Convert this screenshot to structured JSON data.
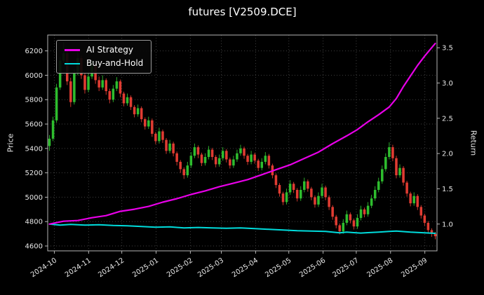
{
  "chart_data": {
    "type": "candlestick",
    "title": "futures [V2509.DCE]",
    "ylabel_left": "Price",
    "ylabel_right": "Return",
    "grid": "dotted",
    "legend_position": "upper-left",
    "x_start": "2024-09-25",
    "x_end": "2025-09-12",
    "x_ticks": [
      {
        "label": "2024-10",
        "date": "2024-10-01"
      },
      {
        "label": "2024-11",
        "date": "2024-11-01"
      },
      {
        "label": "2024-12",
        "date": "2024-12-01"
      },
      {
        "label": "2025-01",
        "date": "2025-01-01"
      },
      {
        "label": "2025-02",
        "date": "2025-02-01"
      },
      {
        "label": "2025-03",
        "date": "2025-03-01"
      },
      {
        "label": "2025-04",
        "date": "2025-04-01"
      },
      {
        "label": "2025-05",
        "date": "2025-05-01"
      },
      {
        "label": "2025-06",
        "date": "2025-06-01"
      },
      {
        "label": "2025-07",
        "date": "2025-07-01"
      },
      {
        "label": "2025-08",
        "date": "2025-08-01"
      },
      {
        "label": "2025-09",
        "date": "2025-09-01"
      }
    ],
    "price_ticks": [
      4600,
      4800,
      5000,
      5200,
      5400,
      5600,
      5800,
      6000,
      6200
    ],
    "return_ticks": [
      1.0,
      1.5,
      2.0,
      2.5,
      3.0,
      3.5
    ],
    "ylim_price": [
      4560,
      6330
    ],
    "ylim_return": [
      0.62,
      3.68
    ],
    "colors": {
      "bg": "#000000",
      "text": "#e8e8e8",
      "grid": "#3f3f3f",
      "spine": "#b5b5b5",
      "up": "#2ebd2e",
      "down": "#e03c32",
      "strategy": "#e800e8",
      "buyhold": "#00dcdc"
    },
    "candles": [
      [
        5420,
        5510,
        5380,
        5480
      ],
      [
        5480,
        5660,
        5460,
        5630
      ],
      [
        5630,
        5930,
        5610,
        5900
      ],
      [
        5900,
        6150,
        5880,
        6120
      ],
      [
        6120,
        6270,
        6100,
        6180
      ],
      [
        6180,
        6210,
        5920,
        5950
      ],
      [
        5950,
        5980,
        5740,
        5780
      ],
      [
        5780,
        6050,
        5760,
        6020
      ],
      [
        6020,
        6190,
        6000,
        6140
      ],
      [
        6140,
        6160,
        5970,
        6000
      ],
      [
        6000,
        6020,
        5850,
        5880
      ],
      [
        5880,
        6030,
        5860,
        5990
      ],
      [
        5990,
        6120,
        5970,
        6080
      ],
      [
        6080,
        6100,
        5930,
        5960
      ],
      [
        5960,
        5990,
        5870,
        5900
      ],
      [
        5900,
        6000,
        5880,
        5960
      ],
      [
        5960,
        5975,
        5840,
        5870
      ],
      [
        5870,
        5890,
        5770,
        5800
      ],
      [
        5800,
        5920,
        5780,
        5890
      ],
      [
        5890,
        5985,
        5870,
        5950
      ],
      [
        5950,
        5965,
        5820,
        5850
      ],
      [
        5850,
        5865,
        5745,
        5770
      ],
      [
        5770,
        5850,
        5750,
        5820
      ],
      [
        5820,
        5835,
        5715,
        5740
      ],
      [
        5740,
        5755,
        5655,
        5680
      ],
      [
        5680,
        5760,
        5660,
        5730
      ],
      [
        5730,
        5745,
        5615,
        5640
      ],
      [
        5640,
        5655,
        5555,
        5580
      ],
      [
        5580,
        5660,
        5560,
        5630
      ],
      [
        5630,
        5645,
        5495,
        5520
      ],
      [
        5520,
        5535,
        5435,
        5460
      ],
      [
        5460,
        5570,
        5440,
        5540
      ],
      [
        5540,
        5555,
        5445,
        5470
      ],
      [
        5470,
        5485,
        5355,
        5380
      ],
      [
        5380,
        5470,
        5360,
        5440
      ],
      [
        5440,
        5455,
        5335,
        5360
      ],
      [
        5360,
        5375,
        5260,
        5290
      ],
      [
        5290,
        5305,
        5200,
        5230
      ],
      [
        5230,
        5245,
        5150,
        5180
      ],
      [
        5180,
        5290,
        5160,
        5260
      ],
      [
        5260,
        5370,
        5240,
        5340
      ],
      [
        5340,
        5440,
        5320,
        5410
      ],
      [
        5410,
        5425,
        5320,
        5350
      ],
      [
        5350,
        5365,
        5255,
        5280
      ],
      [
        5280,
        5360,
        5260,
        5330
      ],
      [
        5330,
        5420,
        5310,
        5390
      ],
      [
        5390,
        5405,
        5305,
        5330
      ],
      [
        5330,
        5345,
        5245,
        5270
      ],
      [
        5270,
        5350,
        5250,
        5320
      ],
      [
        5320,
        5410,
        5300,
        5380
      ],
      [
        5380,
        5395,
        5285,
        5310
      ],
      [
        5310,
        5325,
        5235,
        5260
      ],
      [
        5260,
        5340,
        5240,
        5310
      ],
      [
        5310,
        5390,
        5290,
        5360
      ],
      [
        5360,
        5430,
        5340,
        5400
      ],
      [
        5400,
        5415,
        5315,
        5340
      ],
      [
        5340,
        5355,
        5265,
        5290
      ],
      [
        5290,
        5380,
        5270,
        5350
      ],
      [
        5350,
        5365,
        5275,
        5300
      ],
      [
        5300,
        5315,
        5215,
        5240
      ],
      [
        5240,
        5320,
        5220,
        5290
      ],
      [
        5290,
        5370,
        5270,
        5340
      ],
      [
        5340,
        5355,
        5235,
        5260
      ],
      [
        5260,
        5275,
        5155,
        5180
      ],
      [
        5180,
        5195,
        5075,
        5100
      ],
      [
        5100,
        5115,
        5005,
        5030
      ],
      [
        5030,
        5045,
        4935,
        4960
      ],
      [
        4960,
        5070,
        4940,
        5040
      ],
      [
        5040,
        5140,
        5020,
        5110
      ],
      [
        5110,
        5125,
        5035,
        5060
      ],
      [
        5060,
        5075,
        4965,
        4990
      ],
      [
        4990,
        5090,
        4970,
        5060
      ],
      [
        5060,
        5160,
        5040,
        5130
      ],
      [
        5130,
        5145,
        5045,
        5070
      ],
      [
        5070,
        5085,
        4975,
        5000
      ],
      [
        5000,
        5015,
        4915,
        4940
      ],
      [
        4940,
        5040,
        4920,
        5010
      ],
      [
        5010,
        5110,
        4990,
        5080
      ],
      [
        5080,
        5095,
        4975,
        5000
      ],
      [
        5000,
        5015,
        4895,
        4920
      ],
      [
        4920,
        4935,
        4815,
        4840
      ],
      [
        4840,
        4855,
        4745,
        4770
      ],
      [
        4770,
        4785,
        4695,
        4720
      ],
      [
        4720,
        4820,
        4700,
        4790
      ],
      [
        4790,
        4890,
        4770,
        4860
      ],
      [
        4860,
        4875,
        4785,
        4810
      ],
      [
        4810,
        4825,
        4735,
        4760
      ],
      [
        4760,
        4860,
        4740,
        4830
      ],
      [
        4830,
        4930,
        4810,
        4900
      ],
      [
        4900,
        4915,
        4835,
        4860
      ],
      [
        4860,
        4960,
        4840,
        4930
      ],
      [
        4930,
        5020,
        4910,
        4990
      ],
      [
        4990,
        5090,
        4970,
        5060
      ],
      [
        5060,
        5160,
        5040,
        5130
      ],
      [
        5130,
        5260,
        5110,
        5230
      ],
      [
        5230,
        5360,
        5210,
        5330
      ],
      [
        5330,
        5450,
        5310,
        5410
      ],
      [
        5410,
        5430,
        5295,
        5320
      ],
      [
        5320,
        5340,
        5155,
        5180
      ],
      [
        5180,
        5270,
        5160,
        5240
      ],
      [
        5240,
        5255,
        5095,
        5120
      ],
      [
        5120,
        5135,
        5005,
        5030
      ],
      [
        5030,
        5045,
        4925,
        4950
      ],
      [
        4950,
        5040,
        4930,
        5010
      ],
      [
        5010,
        5025,
        4895,
        4920
      ],
      [
        4920,
        4935,
        4825,
        4850
      ],
      [
        4850,
        4865,
        4765,
        4790
      ],
      [
        4790,
        4805,
        4705,
        4730
      ],
      [
        4730,
        4745,
        4675,
        4700
      ],
      [
        4700,
        4715,
        4655,
        4680
      ]
    ],
    "series": [
      {
        "name": "AI Strategy",
        "axis": "return",
        "color_key": "strategy",
        "width": 2.2,
        "points": [
          [
            0,
            1.0
          ],
          [
            2,
            1.02
          ],
          [
            4,
            1.04
          ],
          [
            8,
            1.05
          ],
          [
            12,
            1.09
          ],
          [
            16,
            1.12
          ],
          [
            20,
            1.18
          ],
          [
            24,
            1.21
          ],
          [
            28,
            1.25
          ],
          [
            32,
            1.31
          ],
          [
            36,
            1.36
          ],
          [
            40,
            1.42
          ],
          [
            44,
            1.47
          ],
          [
            48,
            1.53
          ],
          [
            52,
            1.58
          ],
          [
            56,
            1.63
          ],
          [
            60,
            1.7
          ],
          [
            64,
            1.77
          ],
          [
            68,
            1.84
          ],
          [
            72,
            1.93
          ],
          [
            76,
            2.02
          ],
          [
            80,
            2.14
          ],
          [
            84,
            2.25
          ],
          [
            87,
            2.34
          ],
          [
            90,
            2.45
          ],
          [
            93,
            2.55
          ],
          [
            96,
            2.66
          ],
          [
            98,
            2.78
          ],
          [
            100,
            2.95
          ],
          [
            102,
            3.1
          ],
          [
            104,
            3.25
          ],
          [
            106,
            3.38
          ],
          [
            108,
            3.5
          ],
          [
            109,
            3.56
          ]
        ]
      },
      {
        "name": "Buy-and-Hold",
        "axis": "return",
        "color_key": "buyhold",
        "width": 2.0,
        "points": [
          [
            0,
            1.0
          ],
          [
            3,
            0.985
          ],
          [
            6,
            0.995
          ],
          [
            10,
            0.985
          ],
          [
            14,
            0.99
          ],
          [
            18,
            0.98
          ],
          [
            22,
            0.975
          ],
          [
            26,
            0.965
          ],
          [
            30,
            0.955
          ],
          [
            34,
            0.96
          ],
          [
            38,
            0.945
          ],
          [
            42,
            0.952
          ],
          [
            46,
            0.945
          ],
          [
            50,
            0.94
          ],
          [
            54,
            0.945
          ],
          [
            58,
            0.935
          ],
          [
            62,
            0.925
          ],
          [
            66,
            0.915
          ],
          [
            70,
            0.905
          ],
          [
            74,
            0.9
          ],
          [
            78,
            0.895
          ],
          [
            80,
            0.885
          ],
          [
            82,
            0.875
          ],
          [
            84,
            0.885
          ],
          [
            86,
            0.878
          ],
          [
            88,
            0.872
          ],
          [
            90,
            0.878
          ],
          [
            93,
            0.885
          ],
          [
            96,
            0.895
          ],
          [
            98,
            0.9
          ],
          [
            100,
            0.893
          ],
          [
            102,
            0.885
          ],
          [
            104,
            0.88
          ],
          [
            106,
            0.875
          ],
          [
            108,
            0.87
          ],
          [
            109,
            0.868
          ]
        ]
      }
    ]
  }
}
